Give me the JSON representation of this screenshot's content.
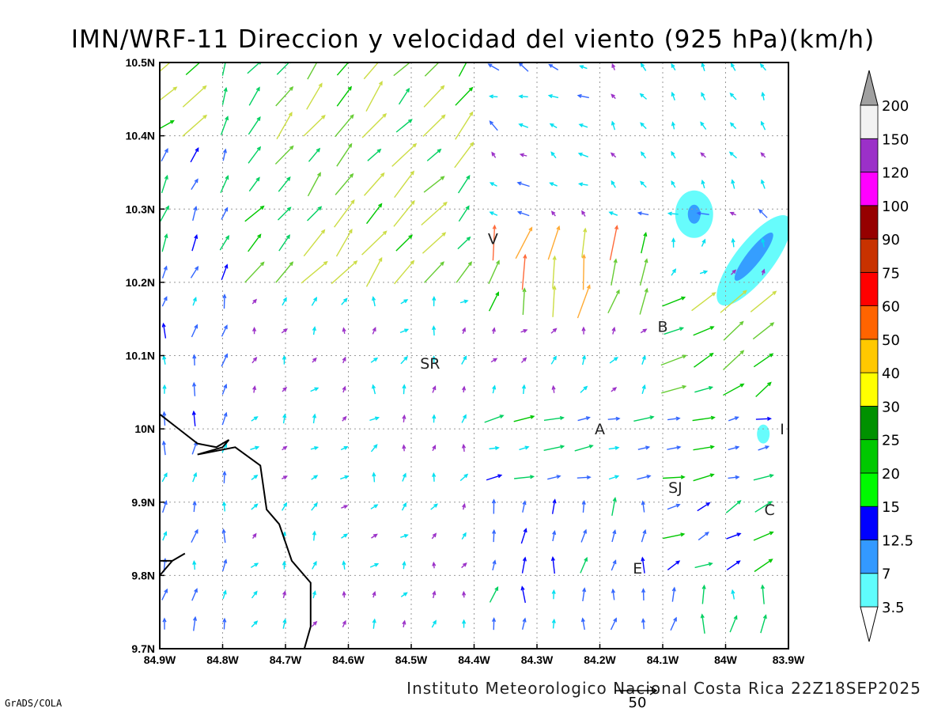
{
  "header": {
    "title": "IMN/WRF-11 Direccion y velocidad del viento (925 hPa)(km/h)"
  },
  "footer": {
    "credit": "Instituto Meteorologico Nacional Costa Rica 22Z18SEP2025",
    "software": "GrADS/COLA",
    "reference_vector": "50"
  },
  "chart_data": {
    "type": "vector-field",
    "title": "IMN/WRF-11 Direccion y velocidad del viento (925 hPa)(km/h)",
    "xlabel": "",
    "ylabel": "",
    "xlim": [
      -84.9,
      -83.9
    ],
    "ylim": [
      9.7,
      10.5
    ],
    "grid": true,
    "x_ticks": [
      "84.9W",
      "84.8W",
      "84.7W",
      "84.6W",
      "84.5W",
      "84.4W",
      "84.3W",
      "84.2W",
      "84.1W",
      "84W",
      "83.9W"
    ],
    "y_ticks": [
      "9.7N",
      "9.8N",
      "9.9N",
      "10N",
      "10.1N",
      "10.2N",
      "10.3N",
      "10.4N",
      "10.5N"
    ],
    "reference_vector_kmh": 50,
    "colorbar": {
      "labels": [
        "3.5",
        "7",
        "12.5",
        "15",
        "20",
        "25",
        "30",
        "40",
        "50",
        "60",
        "75",
        "90",
        "100",
        "120",
        "150",
        "200"
      ],
      "colors": [
        "#5ffcfc",
        "#3399ff",
        "#0000ff",
        "#00fa00",
        "#00c800",
        "#009100",
        "#ffff00",
        "#ffc800",
        "#ff6400",
        "#ff0000",
        "#c83200",
        "#960000",
        "#ff00ff",
        "#9b30c8",
        "#f2f2f2",
        "#a0a0a0"
      ]
    },
    "places": [
      {
        "label": "V",
        "lon": -84.37,
        "lat": 10.26
      },
      {
        "label": "SR",
        "lon": -84.47,
        "lat": 10.09
      },
      {
        "label": "B",
        "lon": -84.1,
        "lat": 10.14
      },
      {
        "label": "A",
        "lon": -84.2,
        "lat": 10.0
      },
      {
        "label": "SJ",
        "lon": -84.08,
        "lat": 9.92
      },
      {
        "label": "C",
        "lon": -83.93,
        "lat": 9.89
      },
      {
        "label": "E",
        "lon": -84.14,
        "lat": 9.81
      },
      {
        "label": "I",
        "lon": -83.91,
        "lat": 10.0
      }
    ],
    "shaded_regions": [
      {
        "band": "3.5-12.5",
        "lon": -84.05,
        "lat": 10.29
      },
      {
        "band": "3.5-12.5",
        "lon": -83.95,
        "lat": 10.23
      },
      {
        "band": "3.5",
        "lon": -83.94,
        "lat": 9.99
      }
    ],
    "coastline": [
      [
        -84.9,
        10.02
      ],
      [
        -84.87,
        10.0
      ],
      [
        -84.84,
        9.98
      ],
      [
        -84.81,
        9.975
      ],
      [
        -84.79,
        9.985
      ],
      [
        -84.8,
        9.975
      ],
      [
        -84.84,
        9.965
      ],
      [
        -84.78,
        9.975
      ],
      [
        -84.74,
        9.95
      ],
      [
        -84.73,
        9.89
      ],
      [
        -84.71,
        9.87
      ],
      [
        -84.69,
        9.82
      ],
      [
        -84.66,
        9.79
      ],
      [
        -84.66,
        9.73
      ],
      [
        -84.67,
        9.7
      ]
    ],
    "coastline_west": [
      [
        -84.9,
        9.8
      ],
      [
        -84.88,
        9.82
      ],
      [
        -84.86,
        9.83
      ],
      [
        -84.88,
        9.82
      ],
      [
        -84.9,
        9.82
      ]
    ],
    "wind_field": [
      {
        "region": "northwest",
        "lon": [
          -84.9,
          -84.75
        ],
        "lat": [
          10.2,
          10.5
        ],
        "direction_deg": 25,
        "speed_kmh": [
          12,
          25
        ]
      },
      {
        "region": "north-central",
        "lon": [
          -84.75,
          -84.4
        ],
        "lat": [
          10.2,
          10.5
        ],
        "direction_deg": 45,
        "speed_kmh": [
          20,
          35
        ]
      },
      {
        "region": "northeast",
        "lon": [
          -84.4,
          -83.9
        ],
        "lat": [
          10.28,
          10.5
        ],
        "direction_deg": 290,
        "speed_kmh": [
          3,
          10
        ]
      },
      {
        "region": "central",
        "lon": [
          -84.9,
          -84.3
        ],
        "lat": [
          9.95,
          10.2
        ],
        "direction_deg": 30,
        "speed_kmh": [
          3,
          8
        ]
      },
      {
        "region": "east-gap",
        "lon": [
          -84.25,
          -83.9
        ],
        "lat": [
          10.05,
          10.25
        ],
        "direction_deg": 55,
        "speed_kmh": [
          20,
          45
        ]
      },
      {
        "region": "east-flow",
        "lon": [
          -84.3,
          -83.9
        ],
        "lat": [
          9.9,
          10.05
        ],
        "direction_deg": 80,
        "speed_kmh": [
          5,
          20
        ]
      },
      {
        "region": "south",
        "lon": [
          -84.9,
          -83.9
        ],
        "lat": [
          9.7,
          9.9
        ],
        "direction_deg": 10,
        "speed_kmh": [
          3,
          12
        ]
      }
    ]
  }
}
